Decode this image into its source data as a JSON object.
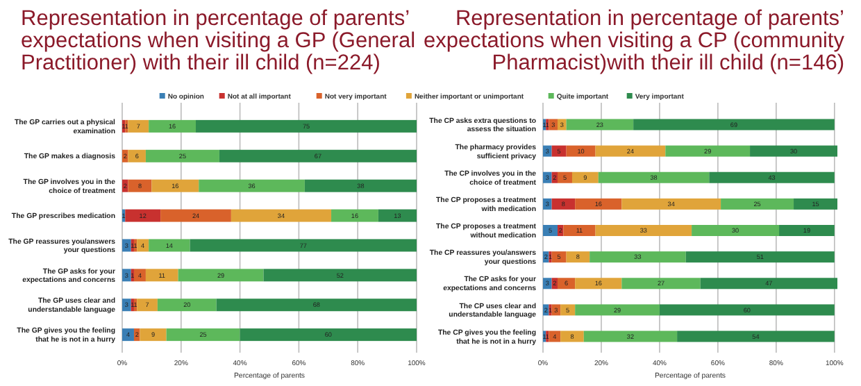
{
  "chart_data": [
    {
      "type": "bar",
      "orientation": "horizontal",
      "stacked": true,
      "data_labels": true,
      "legend": "top",
      "grid": "x",
      "title": "Representation in percentage of parents’ expectations when visiting a GP (General Practitioner) with their ill child (n=224)",
      "xlabel": "Percentage of parents",
      "categories": [
        "The GP carries out a physical examination",
        "The GP makes a diagnosis",
        "The GP involves you in the choice of treatment",
        "The GP prescribes medication",
        "The GP reassures you/answers your questions",
        "The GP asks for your expectations and concerns",
        "The GP uses clear and understandable language",
        "The GP gives you the feeling that he is not in a hurry"
      ],
      "xlim": [
        0,
        100
      ],
      "xticks": [
        {
          "value": 0,
          "label": "0%"
        },
        {
          "value": 20,
          "label": "20%"
        },
        {
          "value": 40,
          "label": "40%"
        },
        {
          "value": 60,
          "label": "60%"
        },
        {
          "value": 80,
          "label": "80%"
        },
        {
          "value": 100,
          "label": "100%"
        }
      ],
      "series": [
        {
          "name": "No opinion",
          "color": "#3a7fb5",
          "values": [
            null,
            null,
            null,
            1,
            3,
            3,
            3,
            4
          ]
        },
        {
          "name": "Not at all important",
          "color": "#c8312f",
          "values": [
            1,
            null,
            2,
            12,
            1,
            1,
            1,
            null
          ]
        },
        {
          "name": "Not very important",
          "color": "#d9622b",
          "values": [
            1,
            2,
            8,
            24,
            1,
            4,
            1,
            2
          ]
        },
        {
          "name": "Neither important or unimportant",
          "color": "#e0a43a",
          "values": [
            7,
            6,
            16,
            34,
            4,
            11,
            7,
            9
          ]
        },
        {
          "name": "Quite important",
          "color": "#5db85b",
          "values": [
            16,
            25,
            36,
            16,
            14,
            29,
            20,
            25
          ]
        },
        {
          "name": "Very important",
          "color": "#2e8b4e",
          "values": [
            75,
            67,
            38,
            13,
            77,
            52,
            68,
            60
          ]
        }
      ]
    },
    {
      "type": "bar",
      "orientation": "horizontal",
      "stacked": true,
      "data_labels": true,
      "grid": "x",
      "title": "Representation in percentage of parents’ expectations when visiting a CP (community Pharmacist)with their ill child (n=146)",
      "xlabel": "Percentage of parents",
      "categories": [
        "The CP asks extra questions to assess the situation",
        "The pharmacy provides sufficient privacy",
        "The CP involves you in the choice of treatment",
        "The CP proposes a treatment with medication",
        "The CP proposes a treatment without medication",
        "The CP reassures you/answers your questions",
        "The CP asks for your expectations and concerns",
        "The CP uses clear and understandable language",
        "The CP gives you the feeling that he is not in a hurry"
      ],
      "xlim": [
        0,
        101
      ],
      "xticks": [
        {
          "value": 0,
          "label": "0%"
        },
        {
          "value": 20,
          "label": "20%"
        },
        {
          "value": 40,
          "label": "40%"
        },
        {
          "value": 60,
          "label": "60%"
        },
        {
          "value": 80,
          "label": "80%"
        },
        {
          "value": 100,
          "label": "100%"
        }
      ],
      "series": [
        {
          "color": "#3a7fb5",
          "values": [
            1,
            3,
            3,
            3,
            5,
            2,
            3,
            2,
            1
          ]
        },
        {
          "color": "#c8312f",
          "values": [
            1,
            5,
            2,
            8,
            2,
            1,
            2,
            1,
            1
          ]
        },
        {
          "color": "#d9622b",
          "values": [
            3,
            10,
            5,
            16,
            11,
            5,
            6,
            3,
            4
          ]
        },
        {
          "color": "#e0a43a",
          "values": [
            3,
            24,
            9,
            34,
            33,
            8,
            16,
            5,
            8
          ]
        },
        {
          "color": "#5db85b",
          "values": [
            23,
            29,
            38,
            25,
            30,
            33,
            27,
            29,
            32
          ]
        },
        {
          "color": "#2e8b4e",
          "values": [
            69,
            30,
            43,
            15,
            19,
            51,
            47,
            60,
            54
          ]
        }
      ]
    }
  ]
}
